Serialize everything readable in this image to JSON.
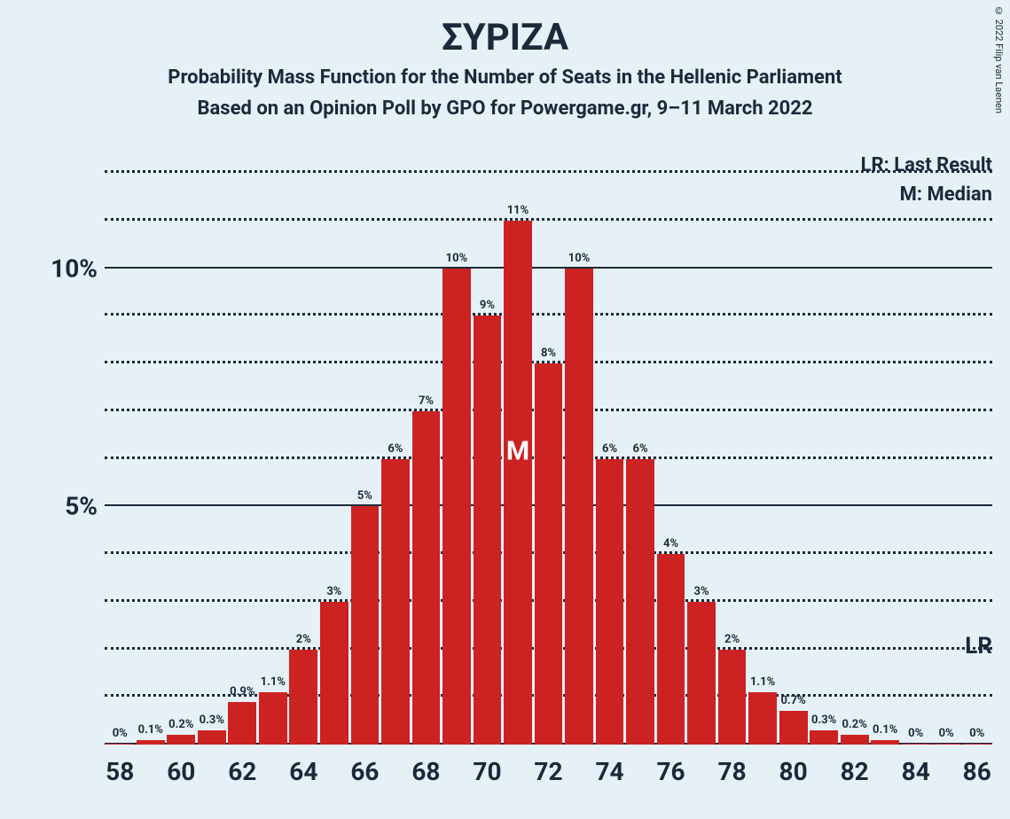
{
  "title": "ΣΥΡΙΖΑ",
  "subtitle1": "Probability Mass Function for the Number of Seats in the Hellenic Parliament",
  "subtitle2": "Based on an Opinion Poll by GPO for Powergame.gr, 9–11 March 2022",
  "legend_lr": "LR: Last Result",
  "legend_m": "M: Median",
  "copyright": "© 2022 Filip van Laenen",
  "chart": {
    "type": "bar",
    "bar_color": "#cc2222",
    "background_color": "#e6f0f7",
    "grid_solid_color": "#1a2a3a",
    "grid_dotted_color": "#1a2a3a",
    "text_color": "#1a2a3a",
    "ylim": [
      0,
      12
    ],
    "y_major_ticks": [
      5,
      10
    ],
    "y_minor_step": 1,
    "y_labels": {
      "5": "5%",
      "10": "10%"
    },
    "x_tick_step": 2,
    "x_range": [
      58,
      86
    ],
    "bar_width": 0.92,
    "median_seat": 71,
    "median_label": "M",
    "lr_label": "LR",
    "lr_y": 1.5,
    "data": [
      {
        "seat": 58,
        "pct": 0,
        "label": "0%"
      },
      {
        "seat": 59,
        "pct": 0.1,
        "label": "0.1%"
      },
      {
        "seat": 60,
        "pct": 0.2,
        "label": "0.2%"
      },
      {
        "seat": 61,
        "pct": 0.3,
        "label": "0.3%"
      },
      {
        "seat": 62,
        "pct": 0.9,
        "label": "0.9%"
      },
      {
        "seat": 63,
        "pct": 1.1,
        "label": "1.1%"
      },
      {
        "seat": 64,
        "pct": 2,
        "label": "2%"
      },
      {
        "seat": 65,
        "pct": 3,
        "label": "3%"
      },
      {
        "seat": 66,
        "pct": 5,
        "label": "5%"
      },
      {
        "seat": 67,
        "pct": 6,
        "label": "6%"
      },
      {
        "seat": 68,
        "pct": 7,
        "label": "7%"
      },
      {
        "seat": 69,
        "pct": 10,
        "label": "10%"
      },
      {
        "seat": 70,
        "pct": 9,
        "label": "9%"
      },
      {
        "seat": 71,
        "pct": 11,
        "label": "11%"
      },
      {
        "seat": 72,
        "pct": 8,
        "label": "8%"
      },
      {
        "seat": 73,
        "pct": 10,
        "label": "10%"
      },
      {
        "seat": 74,
        "pct": 6,
        "label": "6%"
      },
      {
        "seat": 75,
        "pct": 6,
        "label": "6%"
      },
      {
        "seat": 76,
        "pct": 4,
        "label": "4%"
      },
      {
        "seat": 77,
        "pct": 3,
        "label": "3%"
      },
      {
        "seat": 78,
        "pct": 2,
        "label": "2%"
      },
      {
        "seat": 79,
        "pct": 1.1,
        "label": "1.1%"
      },
      {
        "seat": 80,
        "pct": 0.7,
        "label": "0.7%"
      },
      {
        "seat": 81,
        "pct": 0.3,
        "label": "0.3%"
      },
      {
        "seat": 82,
        "pct": 0.2,
        "label": "0.2%"
      },
      {
        "seat": 83,
        "pct": 0.1,
        "label": "0.1%"
      },
      {
        "seat": 84,
        "pct": 0,
        "label": "0%"
      },
      {
        "seat": 85,
        "pct": 0,
        "label": "0%"
      },
      {
        "seat": 86,
        "pct": 0,
        "label": "0%"
      }
    ]
  }
}
